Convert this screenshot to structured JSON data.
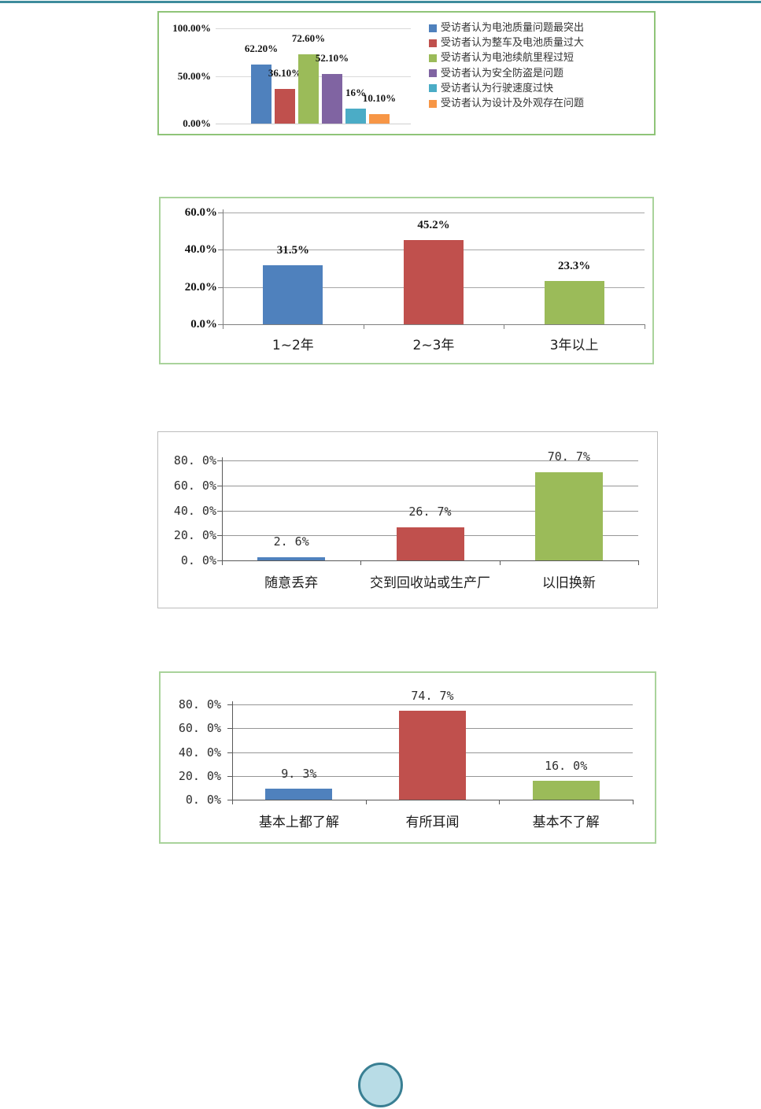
{
  "page": {
    "top_rule_color": "#3e8c9c",
    "bubble": {
      "fill": "#b8dce6",
      "border": "#397f93"
    }
  },
  "palette": {
    "blue": "#4F81BD",
    "red": "#C0504D",
    "green": "#9BBB59",
    "purple": "#8064A2",
    "teal": "#4BACC6",
    "orange": "#F79646"
  },
  "chart_data": [
    {
      "type": "bar",
      "title": "",
      "xlabel": "",
      "ylabel": "",
      "ylim": [
        0,
        100
      ],
      "grid": true,
      "legend_position": "right",
      "show_x_labels": false,
      "yticks": [
        {
          "value": 0,
          "label": "0.00%"
        },
        {
          "value": 50,
          "label": "50.00%"
        },
        {
          "value": 100,
          "label": "100.00%"
        }
      ],
      "bars": [
        {
          "category": "受访者认为电池质量问题最突出",
          "value": 62.2,
          "label": "62.20%",
          "color": "#4F81BD"
        },
        {
          "category": "受访者认为整车及电池质量过大",
          "value": 36.1,
          "label": "36.10%",
          "color": "#C0504D"
        },
        {
          "category": "受访者认为电池续航里程过短",
          "value": 72.6,
          "label": "72.60%",
          "color": "#9BBB59"
        },
        {
          "category": "受访者认为安全防盗是问题",
          "value": 52.1,
          "label": "52.10%",
          "color": "#8064A2"
        },
        {
          "category": "受访者认为行驶速度过快",
          "value": 16,
          "label": "16%",
          "color": "#4BACC6"
        },
        {
          "category": "受访者认为设计及外观存在问题",
          "value": 10.1,
          "label": "10.10%",
          "color": "#F79646"
        }
      ]
    },
    {
      "type": "bar",
      "title": "",
      "xlabel": "",
      "ylabel": "",
      "ylim": [
        0,
        60
      ],
      "grid": true,
      "legend_position": "none",
      "show_x_labels": true,
      "yticks": [
        {
          "value": 0,
          "label": "0.0%"
        },
        {
          "value": 20,
          "label": "20.0%"
        },
        {
          "value": 40,
          "label": "40.0%"
        },
        {
          "value": 60,
          "label": "60.0%"
        }
      ],
      "bars": [
        {
          "category": "1~2年",
          "value": 31.5,
          "label": "31.5%",
          "color": "#4F81BD"
        },
        {
          "category": "2~3年",
          "value": 45.2,
          "label": "45.2%",
          "color": "#C0504D"
        },
        {
          "category": "3年以上",
          "value": 23.3,
          "label": "23.3%",
          "color": "#9BBB59"
        }
      ]
    },
    {
      "type": "bar",
      "title": "",
      "xlabel": "",
      "ylabel": "",
      "ylim": [
        0,
        80
      ],
      "grid": true,
      "legend_position": "none",
      "show_x_labels": true,
      "yticks": [
        {
          "value": 0,
          "label": "0. 0%"
        },
        {
          "value": 20,
          "label": "20. 0%"
        },
        {
          "value": 40,
          "label": "40. 0%"
        },
        {
          "value": 60,
          "label": "60. 0%"
        },
        {
          "value": 80,
          "label": "80. 0%"
        }
      ],
      "bars": [
        {
          "category": "随意丢弃",
          "value": 2.6,
          "label": "2. 6%",
          "color": "#4F81BD"
        },
        {
          "category": "交到回收站或生产厂",
          "value": 26.7,
          "label": "26. 7%",
          "color": "#C0504D"
        },
        {
          "category": "以旧换新",
          "value": 70.7,
          "label": "70. 7%",
          "color": "#9BBB59"
        }
      ]
    },
    {
      "type": "bar",
      "title": "",
      "xlabel": "",
      "ylabel": "",
      "ylim": [
        0,
        80
      ],
      "grid": true,
      "legend_position": "none",
      "show_x_labels": true,
      "yticks": [
        {
          "value": 0,
          "label": "0. 0%"
        },
        {
          "value": 20,
          "label": "20. 0%"
        },
        {
          "value": 40,
          "label": "40. 0%"
        },
        {
          "value": 60,
          "label": "60. 0%"
        },
        {
          "value": 80,
          "label": "80. 0%"
        }
      ],
      "bars": [
        {
          "category": "基本上都了解",
          "value": 9.3,
          "label": "9. 3%",
          "color": "#4F81BD"
        },
        {
          "category": "有所耳闻",
          "value": 74.7,
          "label": "74. 7%",
          "color": "#C0504D"
        },
        {
          "category": "基本不了解",
          "value": 16.0,
          "label": "16. 0%",
          "color": "#9BBB59"
        }
      ]
    }
  ]
}
